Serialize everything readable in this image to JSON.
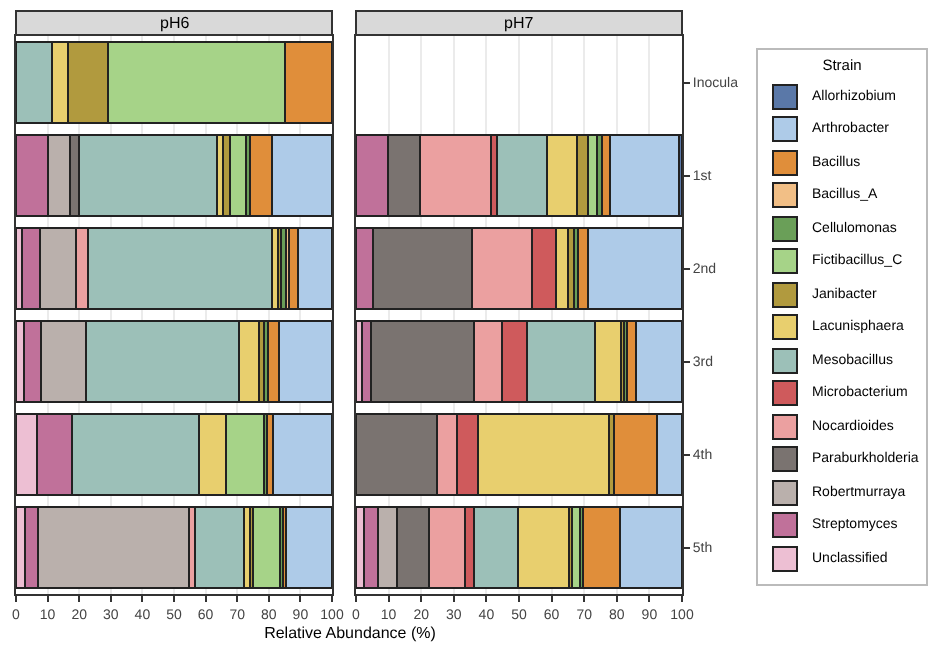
{
  "chart_data": [
    {
      "type": "bar",
      "title": "pH6",
      "orientation": "horizontal",
      "stacked": true,
      "xlabel": "Relative Abundance (%)",
      "categories": [
        "Inocula",
        "1st",
        "2nd",
        "3rd",
        "4th",
        "5th"
      ],
      "xlim": [
        0,
        100
      ],
      "xticks": [
        0,
        10,
        20,
        30,
        40,
        50,
        60,
        70,
        80,
        90,
        100
      ],
      "grid": "x",
      "legend": "right",
      "legend_title": "Strain",
      "tick_labels": "x",
      "series": [
        {
          "name": "Unclassified",
          "color": "#edbfd3",
          "values": [
            null,
            null,
            2,
            2.5,
            6.5,
            2.9
          ]
        },
        {
          "name": "Streptomyces",
          "color": "#c0719a",
          "values": [
            null,
            10,
            5.7,
            5.5,
            11.1,
            4.2
          ]
        },
        {
          "name": "Robertmurraya",
          "color": "#bab0ac",
          "values": [
            null,
            7,
            11.2,
            14.3,
            null,
            47.7
          ]
        },
        {
          "name": "Paraburkholderia",
          "color": "#7a7370",
          "values": [
            null,
            3,
            null,
            null,
            null,
            null
          ]
        },
        {
          "name": "Nocardioides",
          "color": "#eba0a0",
          "values": [
            null,
            null,
            3.8,
            null,
            null,
            1.9
          ]
        },
        {
          "name": "Mesobacillus",
          "color": "#9cc0b8",
          "values": [
            11.5,
            43.7,
            58.3,
            48.3,
            40.3,
            15.3
          ]
        },
        {
          "name": "Lacunisphaera",
          "color": "#e8cf6e",
          "values": [
            5,
            1.7,
            2,
            6.3,
            8.4,
            2.1
          ]
        },
        {
          "name": "Janibacter",
          "color": "#b19a3e",
          "values": [
            12.5,
            2.3,
            1,
            1.7,
            null,
            0.8
          ]
        },
        {
          "name": "Fictibacillus_C",
          "color": "#a6d388",
          "values": [
            56,
            5,
            null,
            null,
            12.2,
            8.6
          ]
        },
        {
          "name": "Cellulomonas",
          "color": "#6a9f58",
          "values": [
            null,
            1.3,
            1.5,
            1,
            1,
            1
          ]
        },
        {
          "name": "Bacillus_A",
          "color": "#f2bf86",
          "values": [
            null,
            null,
            1,
            null,
            null,
            null
          ]
        },
        {
          "name": "Bacillus",
          "color": "#e08e3a",
          "values": [
            15,
            7,
            2.7,
            3.6,
            1.9,
            1
          ]
        },
        {
          "name": "Arthrobacter",
          "color": "#aecbe8",
          "values": [
            null,
            19,
            10.8,
            16.8,
            18.6,
            14.5
          ]
        }
      ]
    },
    {
      "type": "bar",
      "title": "pH7",
      "orientation": "horizontal",
      "stacked": true,
      "categories": [
        "Inocula",
        "1st",
        "2nd",
        "3rd",
        "4th",
        "5th"
      ],
      "xlim": [
        0,
        100
      ],
      "xticks": [
        0,
        10,
        20,
        30,
        40,
        50,
        60,
        70,
        80,
        90,
        100
      ],
      "grid": "x",
      "legend": "right",
      "series": [
        {
          "name": "Unclassified",
          "color": "#edbfd3",
          "values": [
            null,
            null,
            null,
            1.7,
            null,
            2.5
          ]
        },
        {
          "name": "Streptomyces",
          "color": "#c0719a",
          "values": [
            null,
            9.7,
            5.1,
            3,
            null,
            4.2
          ]
        },
        {
          "name": "Robertmurraya",
          "color": "#bab0ac",
          "values": [
            null,
            null,
            null,
            null,
            null,
            5.9
          ]
        },
        {
          "name": "Paraburkholderia",
          "color": "#7a7370",
          "values": [
            null,
            9.9,
            30.4,
            31.6,
            24.9,
            9.7
          ]
        },
        {
          "name": "Nocardioides",
          "color": "#eba0a0",
          "values": [
            null,
            21.9,
            18.4,
            8.4,
            6.1,
            11
          ]
        },
        {
          "name": "Microbacterium",
          "color": "#cf5a5c",
          "values": [
            null,
            1.7,
            7.4,
            7.6,
            6.3,
            3
          ]
        },
        {
          "name": "Mesobacillus",
          "color": "#9cc0b8",
          "values": [
            null,
            15.4,
            null,
            21.1,
            null,
            13.5
          ]
        },
        {
          "name": "Lacunisphaera",
          "color": "#e8cf6e",
          "values": [
            null,
            9.3,
            3.8,
            7.8,
            40.3,
            15.6
          ]
        },
        {
          "name": "Janibacter",
          "color": "#b19a3e",
          "values": [
            null,
            3.4,
            1.7,
            1,
            1.5,
            0.8
          ]
        },
        {
          "name": "Fictibacillus_C",
          "color": "#a6d388",
          "values": [
            null,
            2.5,
            null,
            null,
            null,
            2.5
          ]
        },
        {
          "name": "Cellulomonas",
          "color": "#6a9f58",
          "values": [
            null,
            1.7,
            1.3,
            0.8,
            null,
            0.8
          ]
        },
        {
          "name": "Bacillus_A",
          "color": "#f2bf86",
          "values": [
            null,
            null,
            null,
            null,
            null,
            null
          ]
        },
        {
          "name": "Bacillus",
          "color": "#e08e3a",
          "values": [
            null,
            2.5,
            3,
            3,
            13.3,
            11.4
          ]
        },
        {
          "name": "Arthrobacter",
          "color": "#aecbe8",
          "values": [
            null,
            21.2,
            28.9,
            14,
            7.6,
            19.1
          ]
        },
        {
          "name": "Allorhizobium",
          "color": "#5a78a8",
          "values": [
            null,
            0.8,
            null,
            null,
            null,
            null
          ]
        }
      ]
    }
  ]
}
